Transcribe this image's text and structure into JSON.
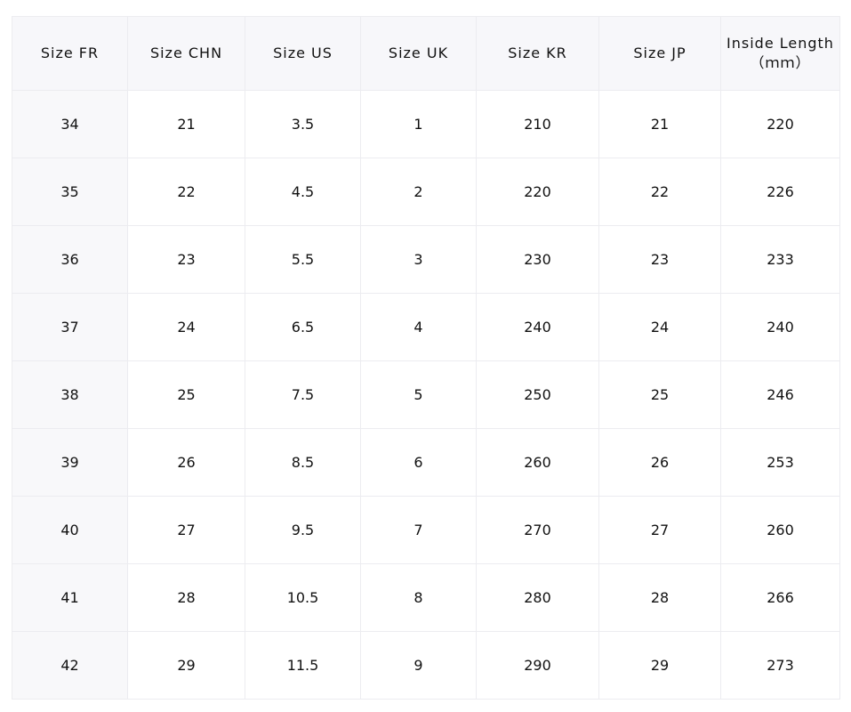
{
  "headers": [
    "Size FR",
    "Size CHN",
    "Size US",
    "Size UK",
    "Size KR",
    "Size JP",
    "Inside Length\n（ｍｍ）"
  ],
  "rows": [
    [
      "34",
      "21",
      "3.5",
      "1",
      "210",
      "21",
      "220"
    ],
    [
      "35",
      "22",
      "4.5",
      "2",
      "220",
      "22",
      "226"
    ],
    [
      "36",
      "23",
      "5.5",
      "3",
      "230",
      "23",
      "233"
    ],
    [
      "37",
      "24",
      "6.5",
      "4",
      "240",
      "24",
      "240"
    ],
    [
      "38",
      "25",
      "7.5",
      "5",
      "250",
      "25",
      "246"
    ],
    [
      "39",
      "26",
      "8.5",
      "6",
      "260",
      "26",
      "253"
    ],
    [
      "40",
      "27",
      "9.5",
      "7",
      "270",
      "27",
      "260"
    ],
    [
      "41",
      "28",
      "10.5",
      "8",
      "280",
      "28",
      "266"
    ],
    [
      "42",
      "29",
      "11.5",
      "9",
      "290",
      "29",
      "273"
    ]
  ]
}
